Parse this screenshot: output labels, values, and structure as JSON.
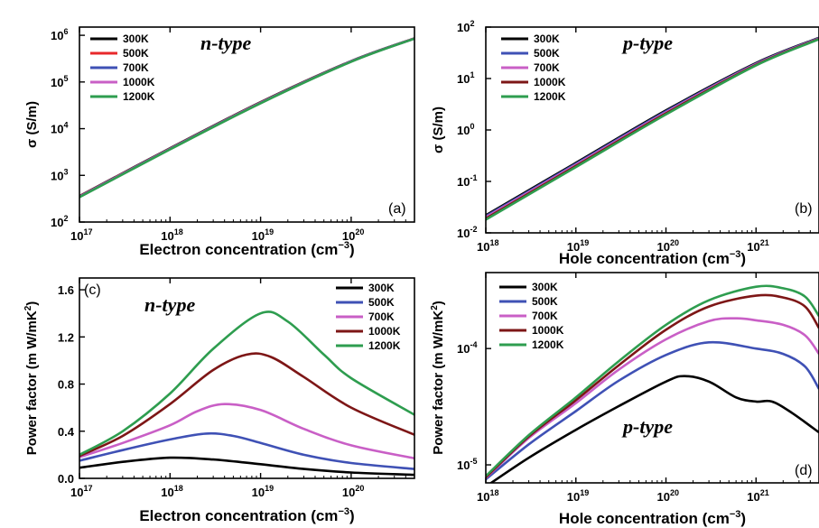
{
  "figure": {
    "colors": {
      "300K": "#000000",
      "500K_a": "#e8282b",
      "500K": "#3f51b5",
      "700K": "#c95fc6",
      "1000K": "#7d1616",
      "1200K": "#2e9d4f"
    }
  },
  "chart_data": [
    {
      "type": "line",
      "panel_label": "(a)",
      "annotation": "n-type",
      "xlabel": "Electron concentration (cm",
      "xlabel_sup": "−3",
      "ylabel": "σ (S/m)",
      "xscale": "log",
      "yscale": "log",
      "xlim": [
        1e+17,
        5e+20
      ],
      "ylim": [
        100,
        1500000
      ],
      "xticks": [
        [
          "10",
          "17"
        ],
        [
          "10",
          "18"
        ],
        [
          "10",
          "19"
        ],
        [
          "10",
          "20"
        ]
      ],
      "yticks": [
        [
          "10",
          "2"
        ],
        [
          "10",
          "3"
        ],
        [
          "10",
          "4"
        ],
        [
          "10",
          "5"
        ],
        [
          "10",
          "6"
        ]
      ],
      "series": [
        {
          "name": "300K",
          "color": "#000000",
          "x": [
            1e+17,
            1e+18,
            1e+19,
            1e+20,
            5e+20
          ],
          "y": [
            360,
            3800,
            37000,
            280000,
            860000
          ]
        },
        {
          "name": "500K",
          "color": "#e8282b",
          "x": [
            1e+17,
            1e+18,
            1e+19,
            1e+20,
            5e+20
          ],
          "y": [
            355,
            3750,
            36500,
            278000,
            855000
          ]
        },
        {
          "name": "700K",
          "color": "#3f51b5",
          "x": [
            1e+17,
            1e+18,
            1e+19,
            1e+20,
            5e+20
          ],
          "y": [
            350,
            3700,
            36000,
            276000,
            852000
          ]
        },
        {
          "name": "1000K",
          "color": "#c95fc6",
          "x": [
            1e+17,
            1e+18,
            1e+19,
            1e+20,
            5e+20
          ],
          "y": [
            345,
            3650,
            35500,
            274000,
            850000
          ]
        },
        {
          "name": "1200K",
          "color": "#2e9d4f",
          "x": [
            1e+17,
            1e+18,
            1e+19,
            1e+20,
            5e+20
          ],
          "y": [
            340,
            3600,
            35000,
            272000,
            848000
          ]
        }
      ]
    },
    {
      "type": "line",
      "panel_label": "(b)",
      "annotation": "p-type",
      "xlabel": "Hole concentration (cm",
      "xlabel_sup": "−3",
      "ylabel": "σ (S/m)",
      "xscale": "log",
      "yscale": "log",
      "xlim": [
        1e+18,
        5e+21
      ],
      "ylim": [
        0.01,
        100
      ],
      "xticks": [
        [
          "10",
          "18"
        ],
        [
          "10",
          "19"
        ],
        [
          "10",
          "20"
        ],
        [
          "10",
          "21"
        ]
      ],
      "yticks": [
        [
          "10",
          "-2"
        ],
        [
          "10",
          "-1"
        ],
        [
          "10",
          "0"
        ],
        [
          "10",
          "1"
        ],
        [
          "10",
          "2"
        ]
      ],
      "series": [
        {
          "name": "300K",
          "color": "#000000",
          "x": [
            1e+18,
            1e+19,
            1e+20,
            1e+21,
            5e+21
          ],
          "y": [
            0.022,
            0.23,
            2.4,
            20,
            62
          ]
        },
        {
          "name": "500K",
          "color": "#3f51b5",
          "x": [
            1e+18,
            1e+19,
            1e+20,
            1e+21,
            5e+21
          ],
          "y": [
            0.021,
            0.22,
            2.3,
            19.5,
            61
          ]
        },
        {
          "name": "700K",
          "color": "#c95fc6",
          "x": [
            1e+18,
            1e+19,
            1e+20,
            1e+21,
            5e+21
          ],
          "y": [
            0.02,
            0.21,
            2.2,
            19,
            60
          ]
        },
        {
          "name": "1000K",
          "color": "#7d1616",
          "x": [
            1e+18,
            1e+19,
            1e+20,
            1e+21,
            5e+21
          ],
          "y": [
            0.019,
            0.2,
            2.1,
            18.5,
            59
          ]
        },
        {
          "name": "1200K",
          "color": "#2e9d4f",
          "x": [
            1e+18,
            1e+19,
            1e+20,
            1e+21,
            5e+21
          ],
          "y": [
            0.018,
            0.19,
            2.0,
            18,
            58
          ]
        }
      ]
    },
    {
      "type": "line",
      "panel_label": "(c)",
      "annotation": "n-type",
      "xlabel": "Electron concentration (cm",
      "xlabel_sup": "−3",
      "ylabel": "Power factor (m W/mK",
      "ylabel_sup": "2",
      "xscale": "log",
      "yscale": "linear",
      "xlim": [
        1e+17,
        5e+20
      ],
      "ylim": [
        0,
        1.7
      ],
      "xticks": [
        [
          "10",
          "17"
        ],
        [
          "10",
          "18"
        ],
        [
          "10",
          "19"
        ],
        [
          "10",
          "20"
        ]
      ],
      "yticks": [
        "0.0",
        "0.4",
        "0.8",
        "1.2",
        "1.6"
      ],
      "ytick_values": [
        0,
        0.4,
        0.8,
        1.2,
        1.6
      ],
      "series": [
        {
          "name": "300K",
          "color": "#000000",
          "x": [
            1e+17,
            3e+17,
            1e+18,
            3e+18,
            1e+19,
            3e+19,
            1e+20,
            5e+20
          ],
          "y": [
            0.09,
            0.14,
            0.175,
            0.16,
            0.12,
            0.08,
            0.05,
            0.03
          ]
        },
        {
          "name": "500K",
          "color": "#3f51b5",
          "x": [
            1e+17,
            3e+17,
            1e+18,
            2.5e+18,
            5e+18,
            1e+19,
            3e+19,
            1e+20,
            5e+20
          ],
          "y": [
            0.15,
            0.24,
            0.33,
            0.38,
            0.36,
            0.3,
            0.2,
            0.13,
            0.08
          ]
        },
        {
          "name": "700K",
          "color": "#c95fc6",
          "x": [
            1e+17,
            3e+17,
            1e+18,
            2e+18,
            4e+18,
            1e+19,
            3e+19,
            1e+20,
            5e+20
          ],
          "y": [
            0.18,
            0.3,
            0.45,
            0.57,
            0.63,
            0.58,
            0.42,
            0.28,
            0.17
          ]
        },
        {
          "name": "1000K",
          "color": "#7d1616",
          "x": [
            1e+17,
            3e+17,
            1e+18,
            3e+18,
            7e+18,
            1.3e+19,
            3e+19,
            1e+20,
            5e+20
          ],
          "y": [
            0.19,
            0.36,
            0.63,
            0.92,
            1.05,
            1.03,
            0.86,
            0.6,
            0.37
          ]
        },
        {
          "name": "1200K",
          "color": "#2e9d4f",
          "x": [
            1e+17,
            3e+17,
            1e+18,
            3e+18,
            1e+19,
            2e+19,
            5e+19,
            1e+20,
            5e+20
          ],
          "y": [
            0.2,
            0.4,
            0.72,
            1.1,
            1.4,
            1.33,
            1.05,
            0.85,
            0.54
          ]
        }
      ]
    },
    {
      "type": "line",
      "panel_label": "(d)",
      "annotation": "p-type",
      "xlabel": "Hole concentration (cm",
      "xlabel_sup": "−3",
      "ylabel": "Power factor (m W/mK",
      "ylabel_sup": "2",
      "xscale": "log",
      "yscale": "log",
      "xlim": [
        1e+18,
        5e+21
      ],
      "ylim": [
        7e-06,
        0.00045
      ],
      "xticks": [
        [
          "10",
          "18"
        ],
        [
          "10",
          "19"
        ],
        [
          "10",
          "20"
        ],
        [
          "10",
          "21"
        ]
      ],
      "yticks": [
        [
          "10",
          "-5"
        ],
        [
          "10",
          "-4"
        ]
      ],
      "ytick_values": [
        1e-05,
        0.0001
      ],
      "series": [
        {
          "name": "300K",
          "color": "#000000",
          "x": [
            1e+18,
            3e+18,
            1e+19,
            3e+19,
            1e+20,
            1.6e+20,
            3e+20,
            6e+20,
            1e+21,
            1.5e+21,
            2.5e+21,
            5e+21
          ],
          "y": [
            6.5e-06,
            1.15e-05,
            2e-05,
            3.2e-05,
            5.2e-05,
            5.8e-05,
            5.2e-05,
            3.8e-05,
            3.5e-05,
            3.5e-05,
            2.8e-05,
            1.9e-05
          ]
        },
        {
          "name": "500K",
          "color": "#3f51b5",
          "x": [
            1e+18,
            3e+18,
            1e+19,
            3e+19,
            1e+20,
            3e+20,
            1e+21,
            2e+21,
            3.5e+21,
            5e+21
          ],
          "y": [
            7.5e-06,
            1.5e-05,
            2.9e-05,
            5.3e-05,
            8.8e-05,
            0.000113,
            0.0001,
            9e-05,
            7e-05,
            4.5e-05
          ]
        },
        {
          "name": "700K",
          "color": "#c95fc6",
          "x": [
            1e+18,
            3e+18,
            1e+19,
            3e+19,
            1e+20,
            3e+20,
            6e+20,
            1e+21,
            2e+21,
            3.5e+21,
            5e+21
          ],
          "y": [
            7.7e-06,
            1.7e-05,
            3.4e-05,
            6.6e-05,
            0.00012,
            0.000172,
            0.000182,
            0.000175,
            0.00016,
            0.00013,
            9e-05
          ]
        },
        {
          "name": "1000K",
          "color": "#7d1616",
          "x": [
            1e+18,
            3e+18,
            1e+19,
            3e+19,
            1e+20,
            3e+20,
            1e+21,
            2e+21,
            3.5e+21,
            5e+21
          ],
          "y": [
            7.8e-06,
            1.75e-05,
            3.6e-05,
            7.2e-05,
            0.000145,
            0.00023,
            0.000285,
            0.000275,
            0.00023,
            0.00015
          ]
        },
        {
          "name": "1200K",
          "color": "#2e9d4f",
          "x": [
            1e+18,
            3e+18,
            1e+19,
            3e+19,
            1e+20,
            3e+20,
            1e+21,
            2e+21,
            3.5e+21,
            5e+21
          ],
          "y": [
            8e-06,
            1.8e-05,
            3.8e-05,
            7.8e-05,
            0.00016,
            0.00026,
            0.00034,
            0.00033,
            0.00028,
            0.00019
          ]
        }
      ]
    }
  ]
}
